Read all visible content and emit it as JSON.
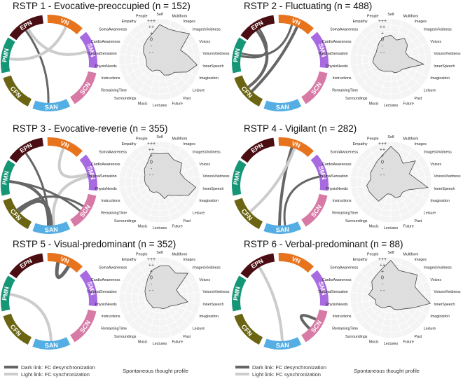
{
  "networks": [
    {
      "label": "EPN",
      "color": "#4a0d12"
    },
    {
      "label": "VN",
      "color": "#e8731d"
    },
    {
      "label": "SMN",
      "color": "#a86ae0"
    },
    {
      "label": "SCN",
      "color": "#d77aa6"
    },
    {
      "label": "SAN",
      "color": "#54aee3"
    },
    {
      "label": "CFN",
      "color": "#6b6412"
    },
    {
      "label": "PMN",
      "color": "#159677"
    }
  ],
  "radar": {
    "axes": [
      "Self",
      "Multiform",
      "Images",
      "ImagesVividness",
      "Voices",
      "VoicesVividness",
      "InnerSpeech",
      "Imagination",
      "Leisure",
      "Past",
      "Future",
      "Lectures",
      "Music",
      "Surroundings",
      "RemainingTime",
      "Instructions",
      "PhysioNeeds",
      "ThermalSensation",
      "CardioAwareness",
      "SomaAwareness",
      "Empathy",
      "People"
    ],
    "levels": [
      "+++",
      "++",
      "+",
      "0",
      "-",
      "- -"
    ]
  },
  "panels": [
    {
      "title": "RSTP 1 - Evocative-preoccupied (n = 152)",
      "links": [
        {
          "from": "EPN",
          "to": "SAN",
          "type": "dark",
          "width": 3
        },
        {
          "from": "EPN",
          "to": "SMN",
          "type": "light",
          "width": 4
        },
        {
          "from": "VN",
          "to": "PMN",
          "type": "light",
          "width": 4
        }
      ],
      "profile": [
        0.86,
        0.78,
        0.82,
        0.97,
        0.56,
        0.7,
        0.93,
        0.74,
        0.48,
        0.45,
        0.4,
        0.27,
        0.27,
        0.34,
        0.35,
        0.36,
        0.33,
        0.35,
        0.44,
        0.52,
        0.58,
        0.66
      ]
    },
    {
      "title": "RSTP 2 - Fluctuating (n = 488)",
      "links": [
        {
          "from": "EPN",
          "to": "CFN",
          "type": "dark",
          "width": 4
        },
        {
          "from": "EPN",
          "to": "PMN",
          "type": "dark",
          "width": 3
        },
        {
          "from": "VN",
          "to": "CFN",
          "type": "dark",
          "width": 4
        },
        {
          "from": "VN",
          "to": "PMN",
          "type": "dark",
          "width": 3
        }
      ],
      "profile": [
        0.6,
        0.5,
        0.62,
        0.54,
        0.4,
        0.45,
        0.82,
        0.48,
        0.37,
        0.36,
        0.34,
        0.28,
        0.3,
        0.34,
        0.38,
        0.4,
        0.45,
        0.42,
        0.4,
        0.44,
        0.52,
        0.58
      ]
    },
    {
      "title": "RSTP 3 - Evocative-reverie (n = 355)",
      "links": [
        {
          "from": "EPN",
          "to": "SAN",
          "type": "dark",
          "width": 3
        },
        {
          "from": "VN",
          "to": "SMN",
          "type": "light",
          "width": 4
        },
        {
          "from": "SMN",
          "to": "SAN",
          "type": "light",
          "width": 4
        },
        {
          "from": "PMN",
          "to": "SAN",
          "type": "dark",
          "width": 4
        },
        {
          "from": "CFN",
          "to": "SAN",
          "type": "dark",
          "width": 5
        },
        {
          "from": "CFN",
          "to": "SCN",
          "type": "dark",
          "width": 3
        },
        {
          "from": "PMN",
          "to": "SCN",
          "type": "dark",
          "width": 3
        }
      ],
      "profile": [
        0.7,
        0.74,
        0.65,
        0.72,
        0.55,
        0.62,
        0.9,
        0.78,
        0.5,
        0.38,
        0.42,
        0.28,
        0.25,
        0.3,
        0.32,
        0.3,
        0.35,
        0.38,
        0.4,
        0.5,
        0.56,
        0.74
      ]
    },
    {
      "title": "RSTP 4 - Vigilant (n = 282)",
      "links": [
        {
          "from": "VN",
          "to": "SAN",
          "type": "dark",
          "width": 4
        },
        {
          "from": "VN",
          "to": "CFN",
          "type": "light",
          "width": 4
        },
        {
          "from": "SMN",
          "to": "SAN",
          "type": "dark",
          "width": 3
        }
      ],
      "profile": [
        0.88,
        0.72,
        0.55,
        0.8,
        0.5,
        0.62,
        0.92,
        0.46,
        0.38,
        0.42,
        0.4,
        0.3,
        0.3,
        0.56,
        0.55,
        0.58,
        0.6,
        0.5,
        0.55,
        0.56,
        0.62,
        0.7
      ]
    },
    {
      "title": "RSTP 5 - Visual-predominant (n = 352)",
      "links": [
        {
          "from": "VN",
          "to": "VN",
          "type": "dark",
          "width": 5
        },
        {
          "from": "PMN",
          "to": "SAN",
          "type": "light",
          "width": 4
        }
      ],
      "profile": [
        0.78,
        0.82,
        0.72,
        0.92,
        0.45,
        0.5,
        0.7,
        0.44,
        0.32,
        0.3,
        0.28,
        0.25,
        0.25,
        0.3,
        0.28,
        0.3,
        0.32,
        0.35,
        0.4,
        0.45,
        0.55,
        0.7
      ]
    },
    {
      "title": "RSTP 6 - Verbal-predominant (n = 88)",
      "links": [
        {
          "from": "SCN",
          "to": "SCN",
          "type": "dark",
          "width": 4
        },
        {
          "from": "EPN",
          "to": "SAN",
          "type": "light",
          "width": 4
        }
      ],
      "profile": [
        0.92,
        0.7,
        0.74,
        0.86,
        0.65,
        0.74,
        0.98,
        0.6,
        0.42,
        0.35,
        0.3,
        0.22,
        0.22,
        0.3,
        0.35,
        0.4,
        0.38,
        0.55,
        0.5,
        0.62,
        0.66,
        0.75
      ]
    }
  ],
  "legend": {
    "dark": "Dark link: FC desynchronization",
    "light": "Light link: FC synchronization",
    "profile_caption": "Spontaneous thought profile",
    "dark_color": "#666666",
    "light_color": "#cccccc"
  }
}
